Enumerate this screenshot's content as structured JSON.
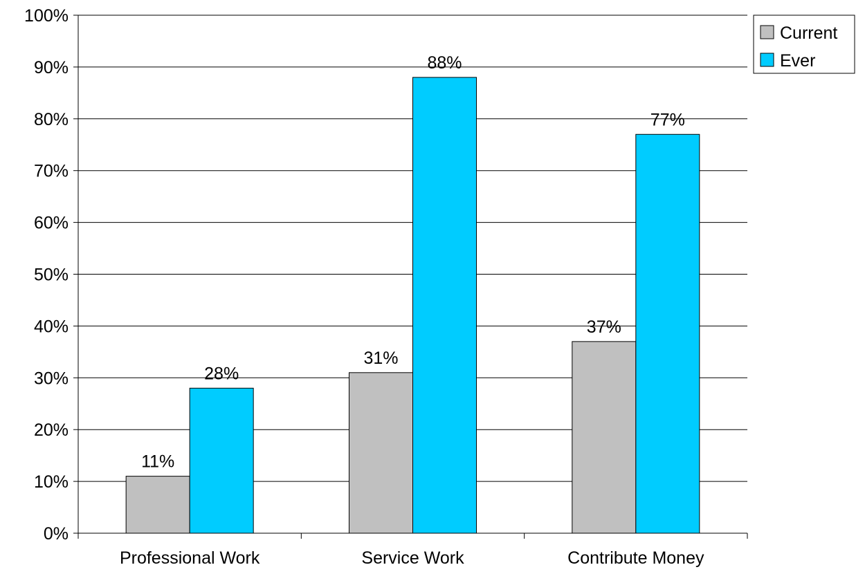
{
  "chart_data": {
    "type": "bar",
    "categories": [
      "Professional Work",
      "Service Work",
      "Contribute Money"
    ],
    "series": [
      {
        "name": "Current",
        "values": [
          11,
          31,
          37
        ],
        "color": "#c0c0c0"
      },
      {
        "name": "Ever",
        "values": [
          28,
          88,
          77
        ],
        "color": "#00ccff"
      }
    ],
    "value_labels": [
      [
        "11%",
        "31%",
        "37%"
      ],
      [
        "28%",
        "88%",
        "77%"
      ]
    ],
    "y_ticks": [
      0,
      10,
      20,
      30,
      40,
      50,
      60,
      70,
      80,
      90,
      100
    ],
    "y_tick_labels": [
      "0%",
      "10%",
      "20%",
      "30%",
      "40%",
      "50%",
      "60%",
      "70%",
      "80%",
      "90%",
      "100%"
    ],
    "ylim": [
      0,
      100
    ],
    "title": "",
    "xlabel": "",
    "ylabel": "",
    "grid": true,
    "legend_position": "top-right"
  }
}
